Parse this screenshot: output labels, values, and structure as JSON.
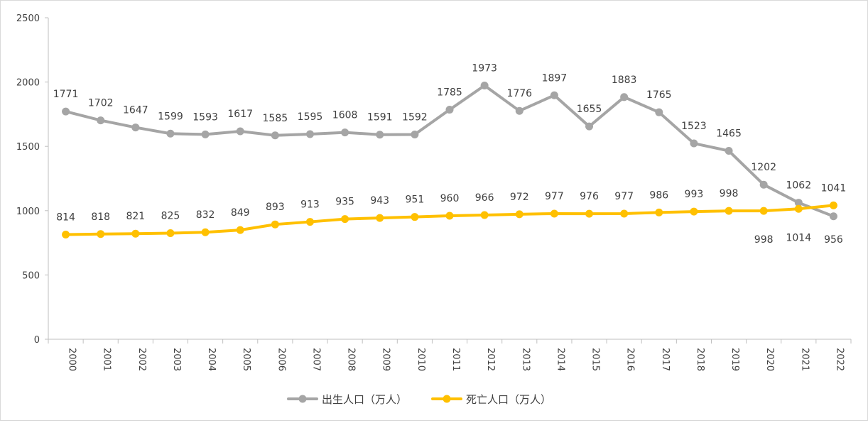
{
  "chart_data": {
    "type": "line",
    "title": "",
    "xlabel": "",
    "ylabel": "",
    "ylim": [
      0,
      2500
    ],
    "yticks": [
      0,
      500,
      1000,
      1500,
      2000,
      2500
    ],
    "grid": false,
    "legend_position": "bottom",
    "categories": [
      "2000",
      "2001",
      "2002",
      "2003",
      "2004",
      "2005",
      "2006",
      "2007",
      "2008",
      "2009",
      "2010",
      "2011",
      "2012",
      "2013",
      "2014",
      "2015",
      "2016",
      "2017",
      "2018",
      "2019",
      "2020",
      "2021",
      "2022"
    ],
    "series": [
      {
        "name": "出生人口（万人）",
        "color": "#a5a5a5",
        "values": [
          1771,
          1702,
          1647,
          1599,
          1593,
          1617,
          1585,
          1595,
          1608,
          1591,
          1592,
          1785,
          1973,
          1776,
          1897,
          1655,
          1883,
          1765,
          1523,
          1465,
          1202,
          1062,
          956
        ]
      },
      {
        "name": "死亡人口（万人）",
        "color": "#ffc000",
        "values": [
          814,
          818,
          821,
          825,
          832,
          849,
          893,
          913,
          935,
          943,
          951,
          960,
          966,
          972,
          977,
          976,
          977,
          986,
          993,
          998,
          998,
          1014,
          1041
        ]
      }
    ]
  }
}
